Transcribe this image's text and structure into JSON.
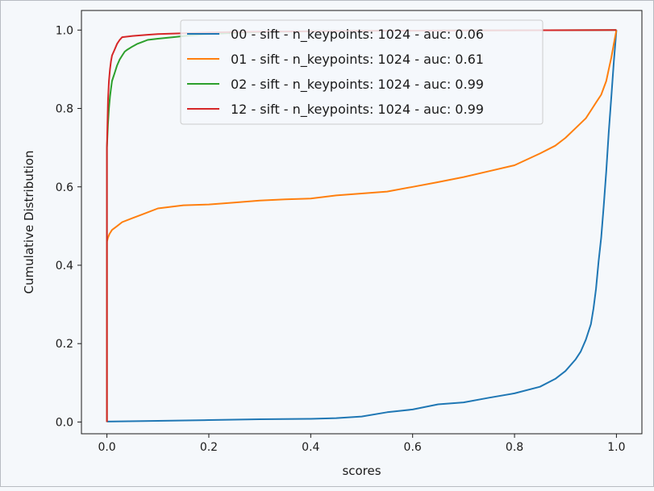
{
  "chart_data": {
    "type": "line",
    "title": "",
    "xlabel": "scores",
    "ylabel": "Cumulative Distribution",
    "xlim": [
      -0.05,
      1.05
    ],
    "ylim": [
      -0.03,
      1.05
    ],
    "xticks": [
      {
        "value": 0.0,
        "label": "0.0"
      },
      {
        "value": 0.2,
        "label": "0.2"
      },
      {
        "value": 0.4,
        "label": "0.4"
      },
      {
        "value": 0.6,
        "label": "0.6"
      },
      {
        "value": 0.8,
        "label": "0.8"
      },
      {
        "value": 1.0,
        "label": "1.0"
      }
    ],
    "yticks": [
      {
        "value": 0.0,
        "label": "0.0"
      },
      {
        "value": 0.2,
        "label": "0.2"
      },
      {
        "value": 0.4,
        "label": "0.4"
      },
      {
        "value": 0.6,
        "label": "0.6"
      },
      {
        "value": 0.8,
        "label": "0.8"
      },
      {
        "value": 1.0,
        "label": "1.0"
      }
    ],
    "grid": false,
    "legend_position": "top-center",
    "series": [
      {
        "name": "00 - sift - n_keypoints: 1024 - auc: 0.06",
        "color": "#1f77b4",
        "x": [
          0.0,
          0.0,
          0.1,
          0.2,
          0.3,
          0.4,
          0.45,
          0.5,
          0.55,
          0.6,
          0.65,
          0.7,
          0.75,
          0.8,
          0.85,
          0.88,
          0.9,
          0.92,
          0.93,
          0.94,
          0.95,
          0.955,
          0.96,
          0.965,
          0.97,
          0.975,
          0.98,
          0.985,
          0.99,
          0.995,
          1.0
        ],
        "y": [
          0.0,
          0.001,
          0.003,
          0.005,
          0.007,
          0.008,
          0.01,
          0.014,
          0.025,
          0.032,
          0.045,
          0.05,
          0.062,
          0.073,
          0.09,
          0.11,
          0.13,
          0.16,
          0.18,
          0.21,
          0.25,
          0.29,
          0.34,
          0.41,
          0.47,
          0.55,
          0.64,
          0.74,
          0.83,
          0.92,
          1.0
        ]
      },
      {
        "name": "01 - sift - n_keypoints: 1024 - auc: 0.61",
        "color": "#ff7f0e",
        "x": [
          0.0,
          0.0,
          0.002,
          0.005,
          0.01,
          0.02,
          0.03,
          0.05,
          0.07,
          0.1,
          0.15,
          0.2,
          0.25,
          0.3,
          0.35,
          0.4,
          0.45,
          0.5,
          0.55,
          0.6,
          0.65,
          0.7,
          0.75,
          0.8,
          0.85,
          0.88,
          0.9,
          0.92,
          0.94,
          0.95,
          0.96,
          0.97,
          0.98,
          0.985,
          0.99,
          0.995,
          1.0
        ],
        "y": [
          0.0,
          0.46,
          0.47,
          0.48,
          0.49,
          0.5,
          0.51,
          0.52,
          0.53,
          0.545,
          0.553,
          0.555,
          0.56,
          0.565,
          0.568,
          0.57,
          0.578,
          0.583,
          0.588,
          0.6,
          0.612,
          0.625,
          0.64,
          0.655,
          0.685,
          0.705,
          0.725,
          0.75,
          0.775,
          0.795,
          0.815,
          0.835,
          0.87,
          0.9,
          0.93,
          0.965,
          1.0
        ]
      },
      {
        "name": "02 - sift - n_keypoints: 1024 - auc: 0.99",
        "color": "#2ca02c",
        "x": [
          0.0,
          0.0,
          0.002,
          0.004,
          0.006,
          0.008,
          0.01,
          0.015,
          0.02,
          0.025,
          0.03,
          0.035,
          0.04,
          0.05,
          0.06,
          0.07,
          0.08,
          0.1,
          0.13,
          0.16,
          0.2,
          0.25,
          0.3,
          0.4,
          0.5,
          0.7,
          1.0
        ],
        "y": [
          0.0,
          0.7,
          0.76,
          0.8,
          0.83,
          0.85,
          0.87,
          0.89,
          0.91,
          0.925,
          0.935,
          0.945,
          0.95,
          0.958,
          0.965,
          0.97,
          0.975,
          0.978,
          0.982,
          0.986,
          0.99,
          0.993,
          0.995,
          0.997,
          0.998,
          0.999,
          1.0
        ]
      },
      {
        "name": "12 - sift - n_keypoints: 1024 - auc: 0.99",
        "color": "#d62728",
        "x": [
          0.0,
          0.0,
          0.002,
          0.004,
          0.006,
          0.008,
          0.01,
          0.015,
          0.02,
          0.025,
          0.03,
          0.05,
          0.08,
          0.1,
          0.15,
          0.2,
          0.3,
          0.5,
          0.7,
          1.0
        ],
        "y": [
          0.0,
          0.7,
          0.82,
          0.87,
          0.9,
          0.92,
          0.935,
          0.95,
          0.965,
          0.975,
          0.982,
          0.985,
          0.988,
          0.99,
          0.992,
          0.994,
          0.996,
          0.998,
          0.999,
          1.0
        ]
      }
    ]
  }
}
